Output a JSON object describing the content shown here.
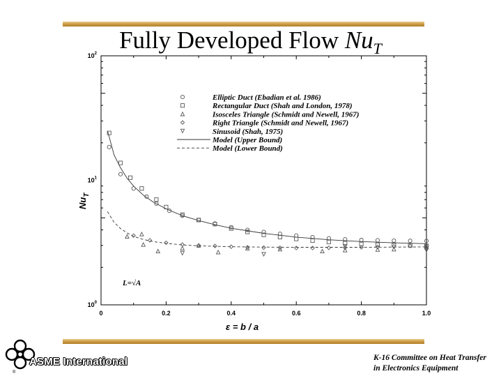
{
  "slide": {
    "title_main": "Fully Developed Flow ",
    "title_var": "Nu",
    "title_sub": "T",
    "org_name": "ASME International",
    "committee_line1": "K-16 Committee on Heat Transfer",
    "committee_line2": "in Electronics Equipment"
  },
  "chart_data": {
    "type": "scatter",
    "xlabel": "ε = b / a",
    "ylabel": "Nu",
    "ylabel_sub": "T",
    "xlim": [
      0,
      1
    ],
    "ylim": [
      1,
      100
    ],
    "yscale": "log",
    "x_ticks": [
      "0",
      "0.2",
      "0.4",
      "0.6",
      "0.8",
      "1.0"
    ],
    "y_ticks": [
      {
        "base": "10",
        "exp": "0"
      },
      {
        "base": "10",
        "exp": "1"
      },
      {
        "base": "10",
        "exp": "2"
      }
    ],
    "annotation": "L=√A",
    "legend_position": "top-right",
    "series": [
      {
        "name": "Elliptic Duct (Ebadian et al. 1986)",
        "marker": "circle",
        "x": [
          0.025,
          0.06,
          0.1,
          0.14,
          0.17,
          0.21,
          0.25,
          0.3,
          0.35,
          0.4,
          0.45,
          0.5,
          0.55,
          0.6,
          0.65,
          0.7,
          0.75,
          0.8,
          0.85,
          0.9,
          0.95,
          1.0
        ],
        "y": [
          18.5,
          11.2,
          8.6,
          7.4,
          6.5,
          5.7,
          5.2,
          4.8,
          4.5,
          4.2,
          4.0,
          3.85,
          3.72,
          3.6,
          3.5,
          3.42,
          3.36,
          3.32,
          3.3,
          3.28,
          3.27,
          3.26
        ]
      },
      {
        "name": "Rectangular Duct (Shah and London, 1978)",
        "marker": "square",
        "x": [
          0.025,
          0.06,
          0.09,
          0.125,
          0.17,
          0.2,
          0.25,
          0.3,
          0.35,
          0.4,
          0.45,
          0.5,
          0.55,
          0.6,
          0.65,
          0.7,
          0.75,
          0.8,
          0.85,
          0.9,
          0.95,
          1.0
        ],
        "y": [
          24.0,
          13.8,
          10.5,
          8.6,
          7.0,
          6.1,
          5.3,
          4.8,
          4.45,
          4.1,
          3.85,
          3.65,
          3.5,
          3.38,
          3.28,
          3.2,
          3.13,
          3.08,
          3.04,
          3.02,
          3.0,
          2.98
        ]
      },
      {
        "name": "Isosceles Triangle (Schmidt and Newell, 1967)",
        "marker": "triangle-up",
        "x": [
          0.08,
          0.125,
          0.13,
          0.175,
          0.25,
          0.3,
          0.36,
          0.45,
          0.55,
          0.68,
          0.75,
          0.85,
          0.9,
          1.0
        ],
        "y": [
          3.55,
          3.7,
          3.05,
          2.7,
          2.85,
          3.0,
          2.65,
          2.85,
          2.8,
          2.7,
          2.75,
          2.78,
          2.8,
          2.9
        ]
      },
      {
        "name": "Right Triangle (Schmidt and Newell, 1967)",
        "marker": "diamond",
        "x": [
          0.1,
          0.15,
          0.2,
          0.25,
          0.3,
          0.35,
          0.4,
          0.45,
          0.5,
          0.55,
          0.6,
          0.65,
          0.7,
          0.75,
          0.8,
          0.85,
          0.9,
          0.95,
          1.0
        ],
        "y": [
          3.6,
          3.3,
          3.15,
          3.05,
          3.0,
          2.97,
          2.93,
          2.9,
          2.88,
          2.87,
          2.86,
          2.86,
          2.87,
          2.88,
          2.9,
          2.92,
          2.95,
          2.97,
          2.98
        ]
      },
      {
        "name": "Sinusoid (Shah, 1975)",
        "marker": "triangle-down",
        "x": [
          0.25,
          0.5,
          0.75,
          1.0
        ],
        "y": [
          2.6,
          2.55,
          2.95,
          2.75
        ]
      },
      {
        "name": "Model (Upper Bound)",
        "line": "solid",
        "x": [
          0.02,
          0.04,
          0.06,
          0.08,
          0.1,
          0.13,
          0.16,
          0.2,
          0.25,
          0.3,
          0.35,
          0.4,
          0.5,
          0.6,
          0.7,
          0.8,
          0.9,
          1.0
        ],
        "y": [
          25.0,
          16.0,
          12.6,
          10.4,
          9.0,
          7.6,
          6.7,
          5.9,
          5.2,
          4.75,
          4.4,
          4.12,
          3.75,
          3.5,
          3.33,
          3.22,
          3.15,
          3.1
        ]
      },
      {
        "name": "Model (Lower Bound)",
        "line": "dashed",
        "x": [
          0.02,
          0.04,
          0.06,
          0.08,
          0.1,
          0.13,
          0.16,
          0.2,
          0.25,
          0.3,
          0.35,
          0.4,
          0.5,
          0.6,
          0.7,
          0.8,
          0.9,
          1.0
        ],
        "y": [
          5.6,
          4.6,
          4.1,
          3.78,
          3.55,
          3.35,
          3.22,
          3.12,
          3.03,
          2.98,
          2.95,
          2.93,
          2.91,
          2.9,
          2.9,
          2.9,
          2.91,
          2.92
        ]
      }
    ],
    "colors": {
      "axis": "#000000",
      "marks": "#555555"
    }
  }
}
